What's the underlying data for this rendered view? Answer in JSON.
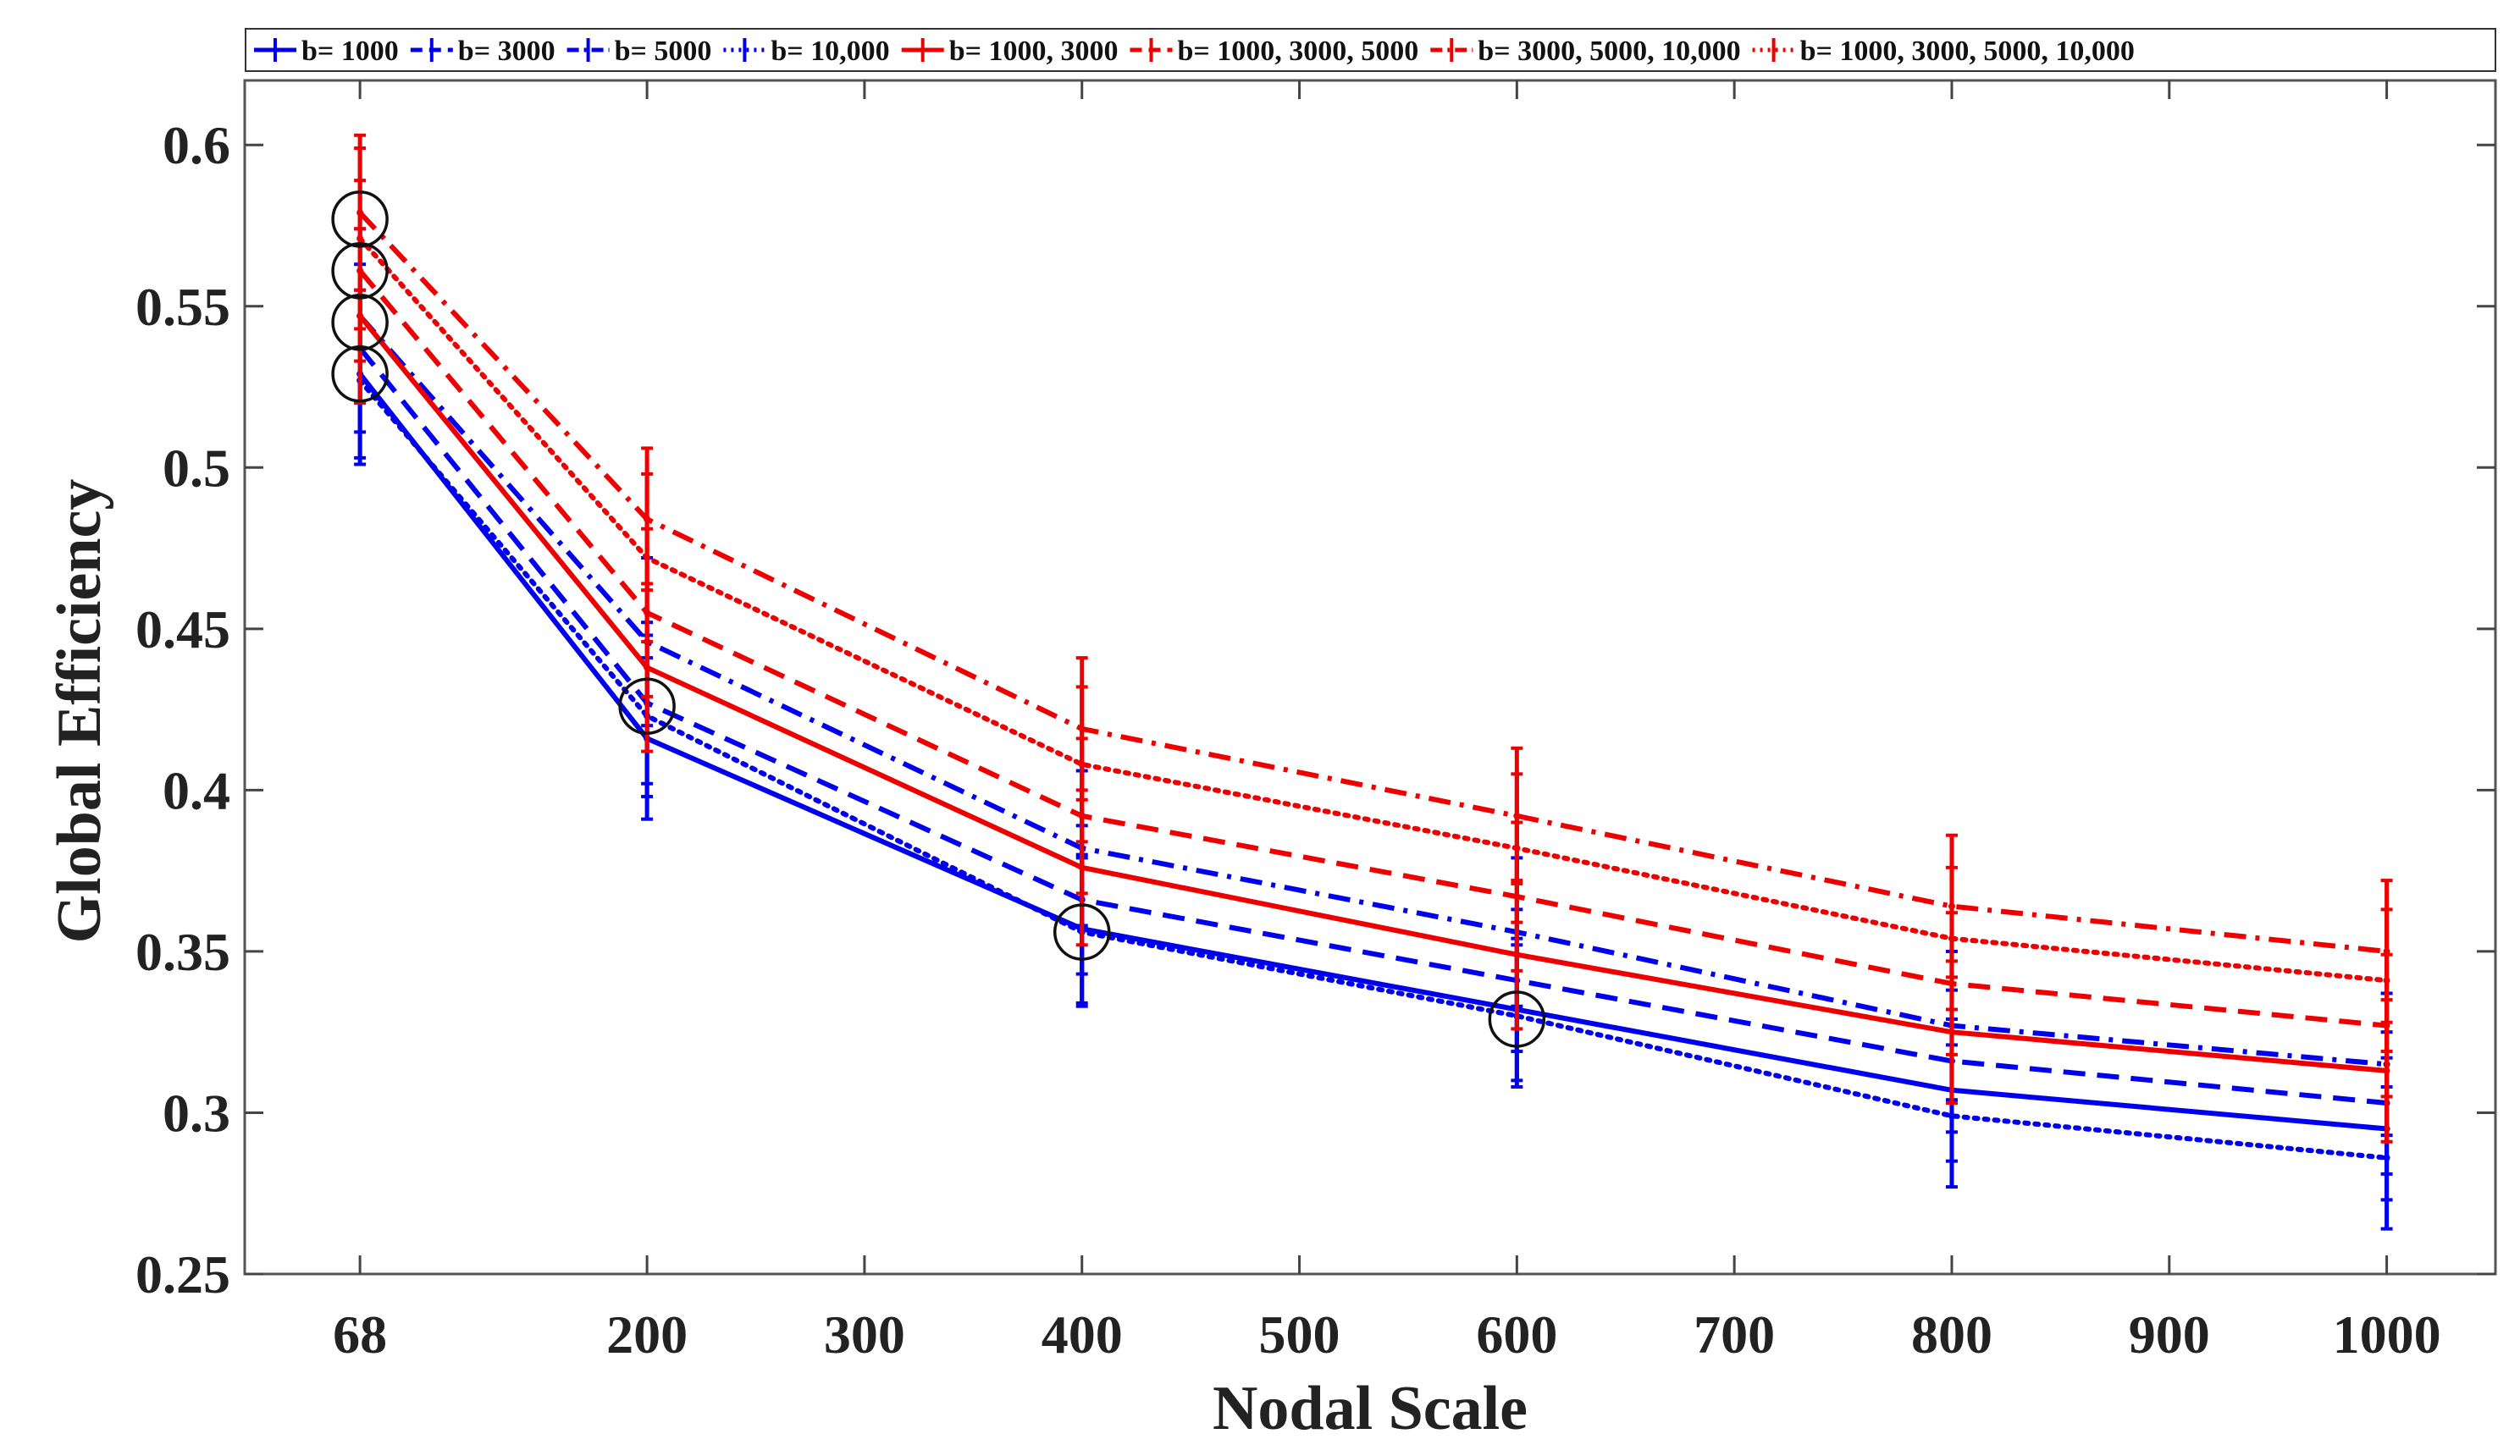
{
  "chart_data": {
    "type": "line",
    "title": "",
    "xlabel": "Nodal Scale",
    "ylabel": "Global Efficiency",
    "x": [
      68,
      200,
      400,
      600,
      800,
      1000
    ],
    "xlim": [
      15,
      1050
    ],
    "ylim": [
      0.25,
      0.62
    ],
    "xticks": [
      68,
      200,
      300,
      400,
      500,
      600,
      700,
      800,
      900,
      1000
    ],
    "xtick_labels": [
      "68",
      "200",
      "300",
      "400",
      "500",
      "600",
      "700",
      "800",
      "900",
      "1000"
    ],
    "yticks": [
      0.25,
      0.3,
      0.35,
      0.4,
      0.45,
      0.5,
      0.55,
      0.6
    ],
    "ytick_labels": [
      "0.25",
      "0.3",
      "0.35",
      "0.4",
      "0.45",
      "0.5",
      "0.55",
      "0.6"
    ],
    "grid": false,
    "legend_position": "top",
    "series": [
      {
        "name": "b= 1000",
        "color": "#0000ee",
        "style": "solid",
        "values": [
          0.529,
          0.416,
          0.357,
          0.332,
          0.307,
          0.295
        ],
        "errors": [
          0.026,
          0.025,
          0.023,
          0.022,
          0.022,
          0.022
        ]
      },
      {
        "name": "b= 3000",
        "color": "#0000ee",
        "style": "dashed",
        "values": [
          0.537,
          0.427,
          0.366,
          0.341,
          0.316,
          0.303
        ],
        "errors": [
          0.026,
          0.025,
          0.023,
          0.022,
          0.022,
          0.022
        ]
      },
      {
        "name": "b= 5000",
        "color": "#0000ee",
        "style": "dashdot",
        "values": [
          0.547,
          0.446,
          0.382,
          0.356,
          0.327,
          0.315
        ],
        "errors": [
          0.027,
          0.026,
          0.024,
          0.023,
          0.023,
          0.022
        ]
      },
      {
        "name": "b= 10,000",
        "color": "#0000ee",
        "style": "dotted",
        "values": [
          0.527,
          0.423,
          0.356,
          0.33,
          0.299,
          0.286
        ],
        "errors": [
          0.026,
          0.025,
          0.023,
          0.022,
          0.022,
          0.022
        ]
      },
      {
        "name": "b= 1000, 3000",
        "color": "#ee0000",
        "style": "solid",
        "values": [
          0.547,
          0.438,
          0.376,
          0.349,
          0.325,
          0.313
        ],
        "errors": [
          0.027,
          0.026,
          0.024,
          0.023,
          0.022,
          0.022
        ]
      },
      {
        "name": "b= 1000, 3000, 5000",
        "color": "#ee0000",
        "style": "dashed",
        "values": [
          0.561,
          0.455,
          0.392,
          0.367,
          0.34,
          0.327
        ],
        "errors": [
          0.028,
          0.026,
          0.024,
          0.023,
          0.022,
          0.022
        ]
      },
      {
        "name": "b= 3000, 5000, 10,000",
        "color": "#ee0000",
        "style": "dashdot",
        "values": [
          0.579,
          0.484,
          0.419,
          0.392,
          0.364,
          0.35
        ],
        "errors": [
          0.024,
          0.022,
          0.022,
          0.021,
          0.022,
          0.022
        ]
      },
      {
        "name": "b= 1000, 3000, 5000, 10,000",
        "color": "#ee0000",
        "style": "dotted",
        "values": [
          0.571,
          0.472,
          0.408,
          0.382,
          0.354,
          0.341
        ],
        "errors": [
          0.028,
          0.026,
          0.024,
          0.023,
          0.022,
          0.022
        ]
      }
    ],
    "annotations": [
      {
        "type": "circle",
        "x": 68,
        "y": 0.577
      },
      {
        "type": "circle",
        "x": 68,
        "y": 0.561
      },
      {
        "type": "circle",
        "x": 68,
        "y": 0.545
      },
      {
        "type": "circle",
        "x": 68,
        "y": 0.529
      },
      {
        "type": "circle",
        "x": 200,
        "y": 0.426
      },
      {
        "type": "circle",
        "x": 400,
        "y": 0.356
      },
      {
        "type": "circle",
        "x": 600,
        "y": 0.329
      }
    ]
  }
}
